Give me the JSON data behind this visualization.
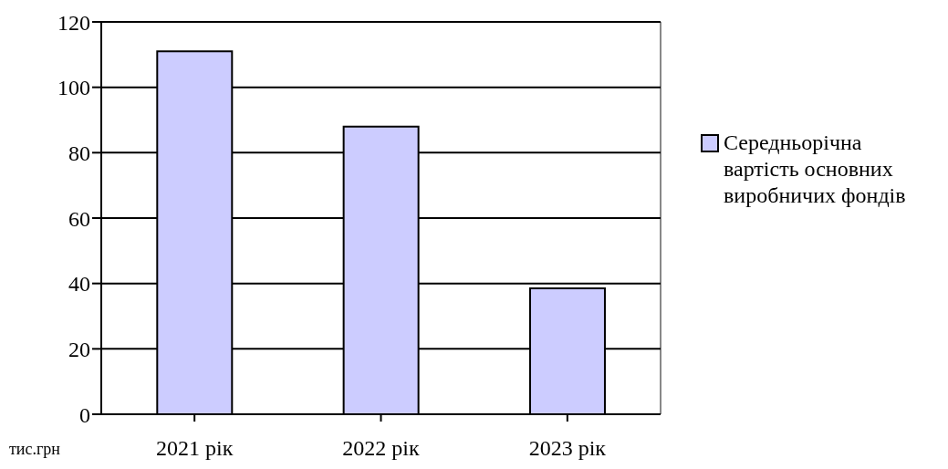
{
  "chart_data": {
    "type": "bar",
    "ylabel": "тис.грн",
    "categories": [
      "2021 рік",
      "2022 рік",
      "2023 рік"
    ],
    "series": [
      {
        "name": "Середньорічна вартість основних виробничих фондів",
        "color": "#ccccff",
        "values": [
          111,
          88,
          38.5
        ]
      }
    ],
    "ylim": [
      0,
      120
    ],
    "yticks": [
      0,
      20,
      40,
      60,
      80,
      100,
      120
    ],
    "grid": "y",
    "legend": "right"
  }
}
